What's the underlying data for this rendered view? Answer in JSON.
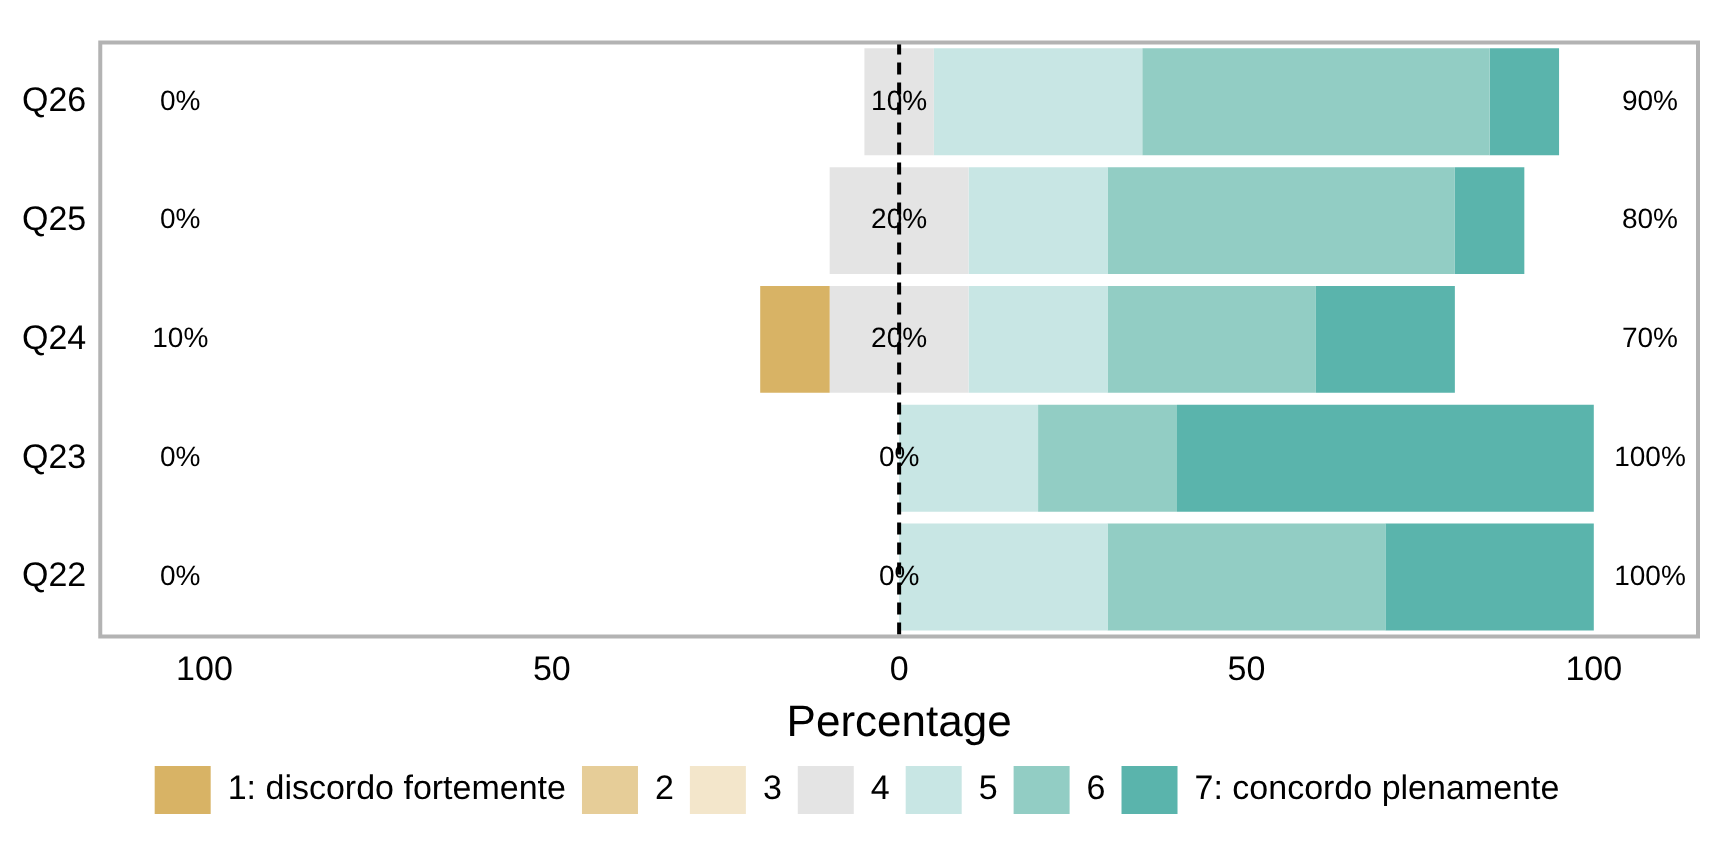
{
  "chart_data": {
    "type": "bar",
    "orientation": "horizontal",
    "categories": [
      "Q26",
      "Q25",
      "Q24",
      "Q23",
      "Q22"
    ],
    "series": [
      {
        "name": "1: discordo fortemente",
        "color": "#d8b365",
        "values": [
          null,
          null,
          10,
          null,
          null
        ],
        "base": [
          null,
          null,
          -20,
          null,
          null
        ]
      },
      {
        "name": "2",
        "color": "#e6cd98",
        "values": [
          null,
          null,
          null,
          null,
          null
        ],
        "base": [
          null,
          null,
          null,
          null,
          null
        ]
      },
      {
        "name": "3",
        "color": "#f3e6cb",
        "values": [
          null,
          null,
          null,
          null,
          null
        ],
        "base": [
          null,
          null,
          null,
          null,
          null
        ]
      },
      {
        "name": "4",
        "color": "#e4e4e4",
        "values": [
          10,
          20,
          20,
          null,
          null
        ],
        "base": [
          -5,
          -10,
          -10,
          null,
          null
        ]
      },
      {
        "name": "5",
        "color": "#c8e6e4",
        "values": [
          30,
          20,
          20,
          20,
          30
        ],
        "base": [
          5,
          10,
          10,
          0,
          0
        ]
      },
      {
        "name": "6",
        "color": "#92cdc4",
        "values": [
          50,
          50,
          30,
          20,
          40
        ],
        "base": [
          35,
          30,
          30,
          20,
          30
        ]
      },
      {
        "name": "7: concordo plenamente",
        "color": "#5ab4ac",
        "values": [
          10,
          10,
          20,
          60,
          30
        ],
        "base": [
          85,
          80,
          60,
          40,
          70
        ]
      }
    ],
    "xlim": [
      -115,
      115
    ],
    "xticks": [
      {
        "value": -100,
        "label": "100"
      },
      {
        "value": -50,
        "label": "50"
      },
      0,
      50,
      100
    ],
    "xlabel": "Percentage",
    "ref_lines": [
      {
        "axis": "x",
        "value": 0,
        "color": "#000000",
        "line_style": "dashed"
      }
    ],
    "annotations": [
      "0%",
      "10%",
      "90%",
      "0%",
      "20%",
      "80%",
      "10%",
      "20%",
      "70%",
      "0%",
      "0%",
      "100%",
      "0%",
      "0%",
      "100%"
    ],
    "grid": false,
    "legend": "bottom"
  }
}
